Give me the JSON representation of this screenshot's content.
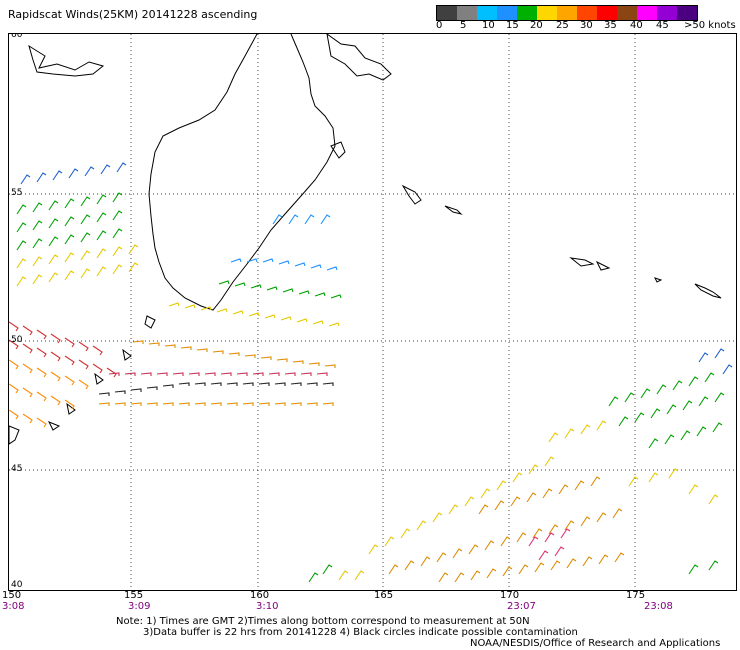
{
  "title": "Rapidscat Winds(25KM) 20141228 ascending",
  "legend": {
    "colors": [
      "#404040",
      "#808080",
      "#00bfff",
      "#1e90ff",
      "#00b000",
      "#ffd700",
      "#ffa500",
      "#ff4500",
      "#ff0000",
      "#8b4513",
      "#ff00ff",
      "#9400d3",
      "#4b0082"
    ],
    "labels": [
      "0",
      "5",
      "10",
      "15",
      "20",
      "25",
      "30",
      "35",
      "40",
      "45",
      ">50 knots"
    ]
  },
  "latitudes": [
    "60",
    "55",
    "50",
    "45",
    "40"
  ],
  "longitudes": [
    "150",
    "155",
    "160",
    "165",
    "170",
    "175"
  ],
  "times": [
    "3:08",
    "3:09",
    "3:10",
    "23:07",
    "23:08"
  ],
  "notes": {
    "line1": "Note: 1) Times are GMT 2)Times along bottom correspond to measurement at 50N",
    "line2": "3)Data buffer is 22 hrs from 20141228 4) Black circles indicate possible contamination",
    "line3": "NOAA/NESDIS/Office of Research and Applications"
  }
}
